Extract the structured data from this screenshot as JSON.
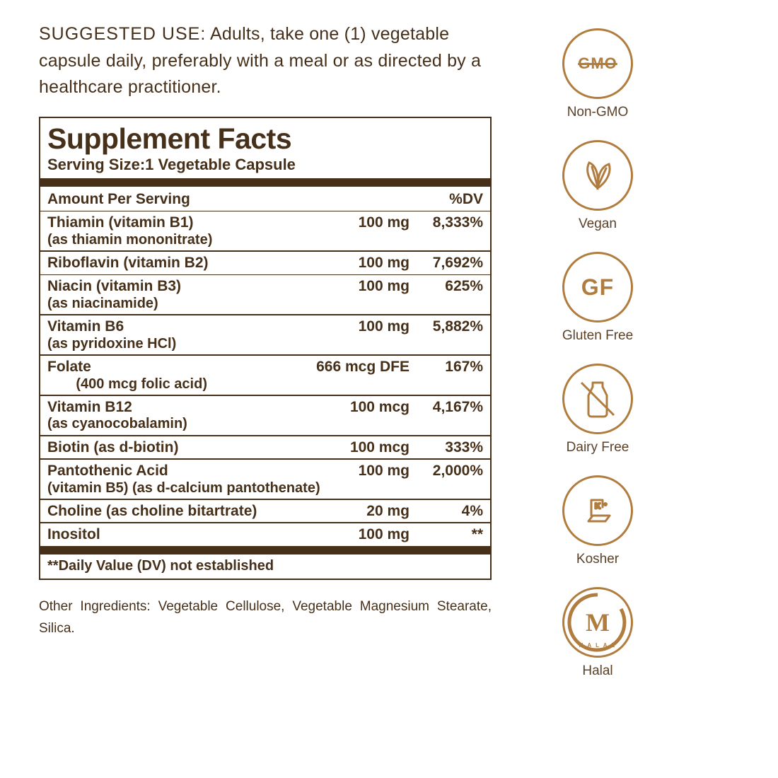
{
  "colors": {
    "ink": "#46301a",
    "badge": "#b07d3f",
    "bg": "#ffffff"
  },
  "suggested": {
    "lead": "SUGGESTED USE:",
    "body": " Adults, take one (1) vegetable capsule daily, preferably with a meal or as directed by a healthcare practitioner."
  },
  "facts": {
    "title": "Supplement Facts",
    "serving_label": "Serving Size:",
    "serving_value": "1 Vegetable Capsule",
    "header_left": "Amount Per Serving",
    "header_right": "%DV",
    "rows": [
      {
        "name": "Thiamin (vitamin B1)",
        "sub": "(as thiamin mononitrate)",
        "amt": "100 mg",
        "dv": "8,333%"
      },
      {
        "name": "Riboflavin (vitamin B2)",
        "sub": "",
        "amt": "100 mg",
        "dv": "7,692%"
      },
      {
        "name": "Niacin (vitamin B3)",
        "sub": "(as niacinamide)",
        "amt": "100 mg",
        "dv": "625%"
      },
      {
        "name": "Vitamin B6",
        "sub": "(as pyridoxine HCl)",
        "amt": "100 mg",
        "dv": "5,882%"
      },
      {
        "name": "Folate",
        "sub": "(400 mcg folic acid)",
        "amt": "666 mcg DFE",
        "dv": "167%",
        "folate": true
      },
      {
        "name": "Vitamin B12",
        "sub": "(as cyanocobalamin)",
        "amt": "100 mcg",
        "dv": "4,167%"
      },
      {
        "name": "Biotin (as d-biotin)",
        "sub": "",
        "amt": "100 mcg",
        "dv": "333%"
      },
      {
        "name": "Pantothenic Acid",
        "sub": "(vitamin B5) (as d-calcium pantothenate)",
        "amt": "100 mg",
        "dv": "2,000%"
      },
      {
        "name": "Choline (as choline bitartrate)",
        "sub": "",
        "amt": "20 mg",
        "dv": "4%"
      },
      {
        "name": "Inositol",
        "sub": "",
        "amt": "100 mg",
        "dv": "**"
      }
    ],
    "footer": "**Daily Value (DV) not established"
  },
  "other_ingredients": "Other Ingredients: Vegetable Cellulose, Vegetable Magnesium Stearate, Silica.",
  "badges": [
    {
      "id": "non-gmo",
      "label": "Non-GMO",
      "inner": "GMO"
    },
    {
      "id": "vegan",
      "label": "Vegan"
    },
    {
      "id": "gf",
      "label": "Gluten Free",
      "inner": "GF"
    },
    {
      "id": "dairy",
      "label": "Dairy Free"
    },
    {
      "id": "kosher",
      "label": "Kosher"
    },
    {
      "id": "halal",
      "label": "Halal",
      "inner": "M"
    }
  ]
}
